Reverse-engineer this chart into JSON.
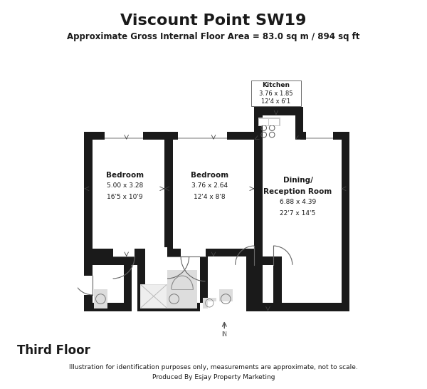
{
  "title": "Viscount Point SW19",
  "subtitle": "Approximate Gross Internal Floor Area = 83.0 sq m / 894 sq ft",
  "floor": "Third Floor",
  "footer1": "Illustration for identification purposes only, measurements are approximate, not to scale.",
  "footer2": "Produced By Esjay Property Marketing",
  "bg_color": "#ffffff",
  "wall_color": "#1a1a1a",
  "title_fontsize": 16,
  "subtitle_fontsize": 8.5,
  "floor_fontsize": 12,
  "footer_fontsize": 6.5
}
